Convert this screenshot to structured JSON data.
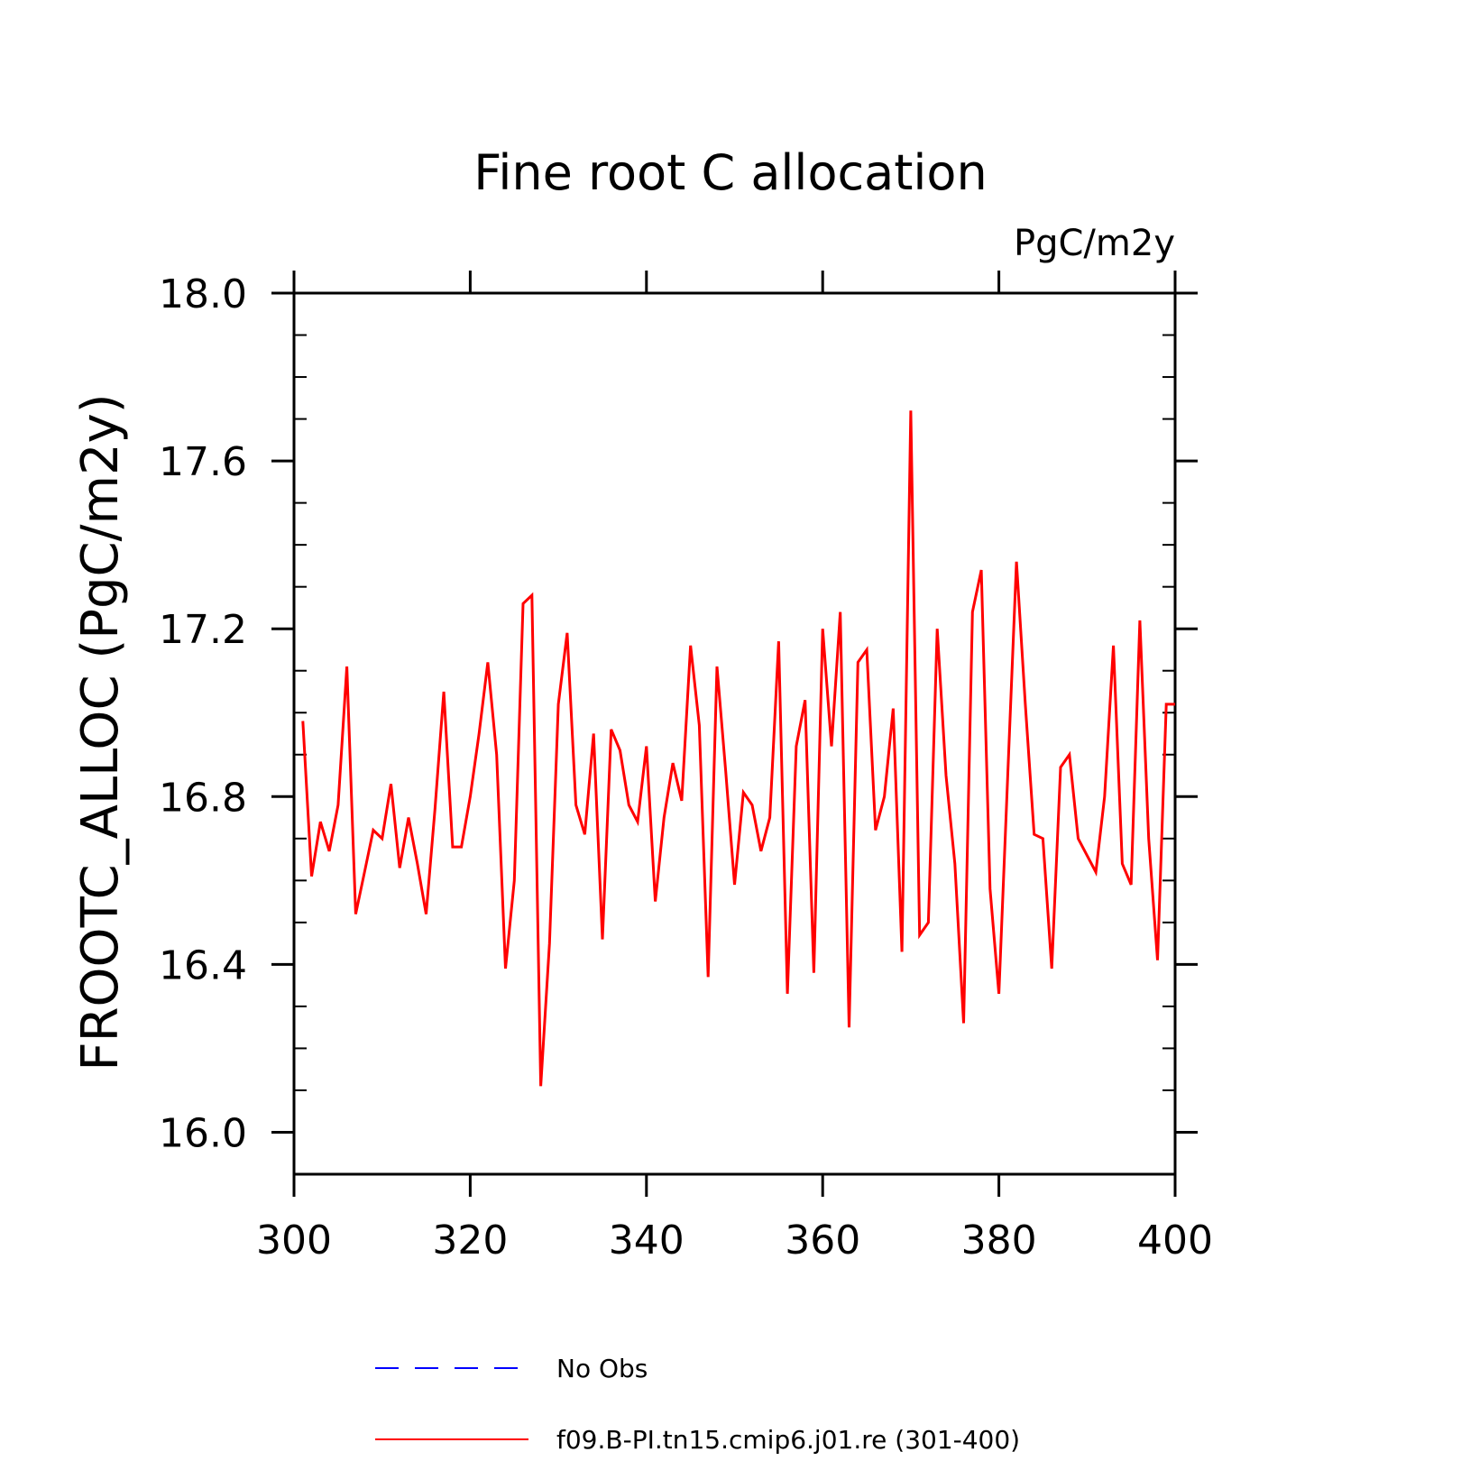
{
  "chart_data": {
    "type": "line",
    "title": "Fine root C allocation",
    "units": "PgC/m2y",
    "xlabel": "",
    "ylabel": "FROOTC_ALLOC  (PgC/m2y)",
    "xlim": [
      300,
      400
    ],
    "ylim": [
      15.9,
      18.0
    ],
    "x_ticks": [
      300,
      320,
      340,
      360,
      380,
      400
    ],
    "x_tick_labels": [
      "300",
      "320",
      "340",
      "360",
      "380",
      "400"
    ],
    "y_ticks": [
      16.0,
      16.4,
      16.8,
      17.2,
      17.6,
      18.0
    ],
    "y_tick_labels": [
      "16.0",
      "16.4",
      "16.8",
      "17.2",
      "17.6",
      "18.0"
    ],
    "grid": false,
    "legend": {
      "placement": "bottom",
      "entries": [
        {
          "name": "No Obs",
          "color": "#0000ff",
          "style": "dashed"
        },
        {
          "name": "f09.B-PI.tn15.cmip6.j01.re (301-400)",
          "color": "#ff0000",
          "style": "solid"
        }
      ]
    },
    "series": [
      {
        "name": "f09.B-PI.tn15.cmip6.j01.re (301-400)",
        "color": "#ff0000",
        "x": [
          301,
          302,
          303,
          304,
          305,
          306,
          307,
          308,
          309,
          310,
          311,
          312,
          313,
          314,
          315,
          316,
          317,
          318,
          319,
          320,
          321,
          322,
          323,
          324,
          325,
          326,
          327,
          328,
          329,
          330,
          331,
          332,
          333,
          334,
          335,
          336,
          337,
          338,
          339,
          340,
          341,
          342,
          343,
          344,
          345,
          346,
          347,
          348,
          349,
          350,
          351,
          352,
          353,
          354,
          355,
          356,
          357,
          358,
          359,
          360,
          361,
          362,
          363,
          364,
          365,
          366,
          367,
          368,
          369,
          370,
          371,
          372,
          373,
          374,
          375,
          376,
          377,
          378,
          379,
          380,
          381,
          382,
          383,
          384,
          385,
          386,
          387,
          388,
          389,
          390,
          391,
          392,
          393,
          394,
          395,
          396,
          397,
          398,
          399,
          400
        ],
        "values": [
          16.98,
          16.61,
          16.74,
          16.67,
          16.78,
          17.11,
          16.52,
          16.62,
          16.72,
          16.7,
          16.83,
          16.63,
          16.75,
          16.64,
          16.52,
          16.77,
          17.05,
          16.68,
          16.68,
          16.8,
          16.95,
          17.12,
          16.9,
          16.39,
          16.6,
          17.26,
          17.28,
          16.11,
          16.45,
          17.02,
          17.19,
          16.78,
          16.71,
          16.95,
          16.46,
          16.96,
          16.91,
          16.78,
          16.74,
          16.92,
          16.55,
          16.75,
          16.88,
          16.79,
          17.16,
          16.97,
          16.37,
          17.11,
          16.86,
          16.59,
          16.81,
          16.78,
          16.67,
          16.75,
          17.17,
          16.33,
          16.92,
          17.03,
          16.38,
          17.2,
          16.92,
          17.24,
          16.25,
          17.12,
          17.15,
          16.72,
          16.8,
          17.01,
          16.43,
          17.72,
          16.47,
          16.5,
          17.2,
          16.85,
          16.64,
          16.26,
          17.24,
          17.34,
          16.58,
          16.33,
          16.85,
          17.36,
          17.02,
          16.71,
          16.7,
          16.39,
          16.87,
          16.9,
          16.7,
          16.66,
          16.62,
          16.8,
          17.16,
          16.64,
          16.59,
          17.22,
          16.7,
          16.41,
          17.02,
          17.02
        ]
      }
    ]
  }
}
